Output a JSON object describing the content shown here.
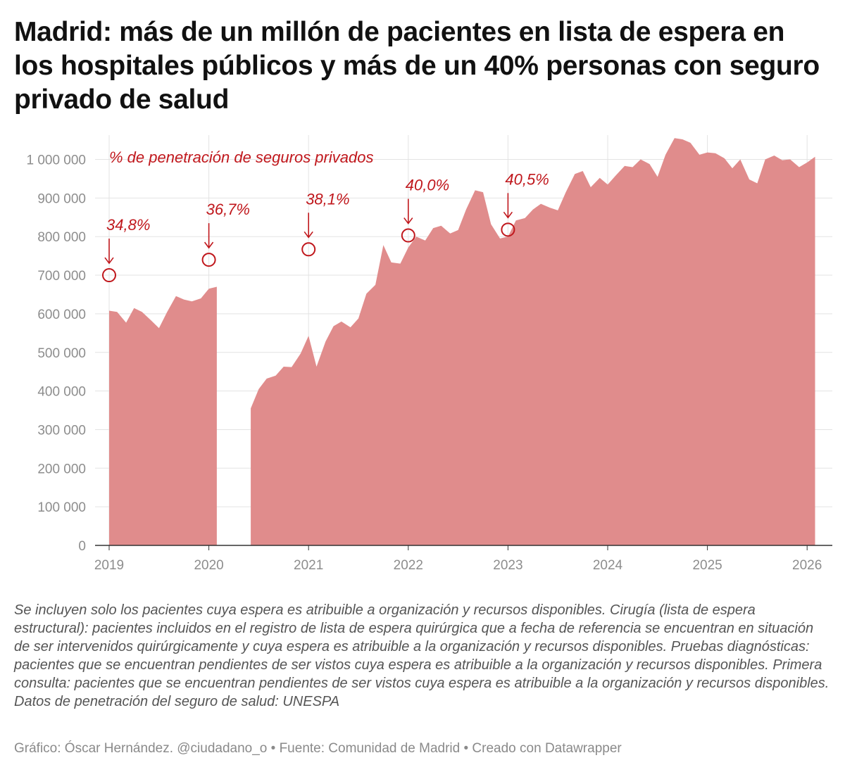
{
  "title": "Madrid: más de un millón de pacientes en lista de espera en los hospitales públicos y más de un 40% personas con seguro privado de salud",
  "note": "Se incluyen solo los pacientes cuya espera es atribuible a organización y recursos disponibles. Cirugía (lista de espera estructural): pacientes incluidos en el registro de lista de espera quirúrgica que a fecha de referencia se encuentran en situación de ser intervenidos quirúrgicamente y cuya espera es atribuible a la organización y recursos disponibles. Pruebas diagnósticas: pacientes que se encuentran pendientes de ser vistos cuya espera es atribuible a la organización y recursos disponibles. Primera consulta: pacientes que se encuentran pendientes de ser vistos cuya espera es atribuible a la organización y recursos disponibles. Datos de penetración del seguro de salud: UNESPA",
  "credits": "Gráfico: Óscar Hernández. @ciudadano_o • Fuente: Comunidad de Madrid  • Creado con Datawrapper",
  "colors": {
    "area": "#e08c8c",
    "accent": "#c0171c",
    "grid": "#e3e3e3",
    "axis": "#333333"
  },
  "chart_data": {
    "type": "area",
    "title": "Madrid: más de un millón de pacientes en lista de espera en los hospitales públicos y más de un 40% personas con seguro privado de salud",
    "xlabel": "",
    "ylabel": "",
    "xlim": [
      2019,
      2026.1
    ],
    "ylim": [
      0,
      1050000
    ],
    "yticks": [
      0,
      100000,
      200000,
      300000,
      400000,
      500000,
      600000,
      700000,
      800000,
      900000,
      1000000
    ],
    "ytick_labels": [
      "0",
      "100 000",
      "200 000",
      "300 000",
      "400 000",
      "500 000",
      "600 000",
      "700 000",
      "800 000",
      "900 000",
      "1 000 000"
    ],
    "xticks": [
      2019,
      2020,
      2021,
      2022,
      2023,
      2024,
      2025,
      2026
    ],
    "xtick_labels": [
      "2019",
      "2020",
      "2021",
      "2022",
      "2023",
      "2024",
      "2025",
      "2026"
    ],
    "grid": true,
    "series": [
      {
        "name": "Pacientes en lista de espera",
        "segments": [
          [
            [
              2019.0,
              608000
            ],
            [
              2019.08,
              605000
            ],
            [
              2019.17,
              577000
            ],
            [
              2019.25,
              615000
            ],
            [
              2019.33,
              605000
            ],
            [
              2019.42,
              583000
            ],
            [
              2019.5,
              563000
            ],
            [
              2019.58,
              604000
            ],
            [
              2019.67,
              646000
            ],
            [
              2019.75,
              637000
            ],
            [
              2019.83,
              632000
            ],
            [
              2019.92,
              640000
            ],
            [
              2020.0,
              665000
            ],
            [
              2020.08,
              670000
            ]
          ],
          [
            [
              2020.42,
              355000
            ],
            [
              2020.5,
              405000
            ],
            [
              2020.58,
              432000
            ],
            [
              2020.67,
              440000
            ],
            [
              2020.75,
              463000
            ],
            [
              2020.83,
              462000
            ],
            [
              2020.92,
              497000
            ],
            [
              2021.0,
              543000
            ],
            [
              2021.08,
              463000
            ],
            [
              2021.17,
              528000
            ],
            [
              2021.25,
              568000
            ],
            [
              2021.33,
              580000
            ],
            [
              2021.42,
              565000
            ],
            [
              2021.5,
              588000
            ],
            [
              2021.58,
              652000
            ],
            [
              2021.67,
              675000
            ],
            [
              2021.75,
              778000
            ],
            [
              2021.83,
              733000
            ],
            [
              2021.92,
              730000
            ],
            [
              2022.0,
              772000
            ],
            [
              2022.08,
              800000
            ],
            [
              2022.17,
              790000
            ],
            [
              2022.25,
              822000
            ],
            [
              2022.33,
              828000
            ],
            [
              2022.42,
              808000
            ],
            [
              2022.5,
              817000
            ],
            [
              2022.58,
              870000
            ],
            [
              2022.67,
              920000
            ],
            [
              2022.75,
              915000
            ],
            [
              2022.83,
              832000
            ],
            [
              2022.92,
              795000
            ],
            [
              2023.0,
              800000
            ],
            [
              2023.08,
              842000
            ],
            [
              2023.17,
              848000
            ],
            [
              2023.25,
              870000
            ],
            [
              2023.33,
              885000
            ],
            [
              2023.42,
              875000
            ],
            [
              2023.5,
              868000
            ],
            [
              2023.58,
              915000
            ],
            [
              2023.67,
              962000
            ],
            [
              2023.75,
              970000
            ],
            [
              2023.83,
              928000
            ],
            [
              2023.92,
              952000
            ],
            [
              2024.0,
              935000
            ],
            [
              2024.08,
              958000
            ],
            [
              2024.17,
              983000
            ],
            [
              2024.25,
              980000
            ],
            [
              2024.33,
              1000000
            ],
            [
              2024.42,
              988000
            ],
            [
              2024.5,
              955000
            ],
            [
              2024.58,
              1012000
            ],
            [
              2024.67,
              1055000
            ],
            [
              2024.75,
              1052000
            ],
            [
              2024.83,
              1043000
            ],
            [
              2024.92,
              1012000
            ],
            [
              2025.0,
              1018000
            ],
            [
              2025.08,
              1016000
            ],
            [
              2025.17,
              1003000
            ],
            [
              2025.25,
              977000
            ],
            [
              2025.33,
              1000000
            ],
            [
              2025.42,
              948000
            ],
            [
              2025.5,
              938000
            ],
            [
              2025.58,
              1000000
            ],
            [
              2025.67,
              1010000
            ],
            [
              2025.75,
              998000
            ],
            [
              2025.83,
              1000000
            ],
            [
              2025.92,
              980000
            ],
            [
              2026.0,
              992000
            ],
            [
              2026.08,
              1007000
            ]
          ]
        ]
      }
    ],
    "annotations": [
      {
        "x": 2019.0,
        "y": 700000,
        "label": "34,8%"
      },
      {
        "x": 2020.0,
        "y": 740000,
        "label": "36,7%"
      },
      {
        "x": 2021.0,
        "y": 767000,
        "label": "38,1%"
      },
      {
        "x": 2022.0,
        "y": 803000,
        "label": "40,0%"
      },
      {
        "x": 2023.0,
        "y": 818000,
        "label": "40,5%"
      }
    ],
    "annotation_title": "% de penetración de seguros privados"
  }
}
